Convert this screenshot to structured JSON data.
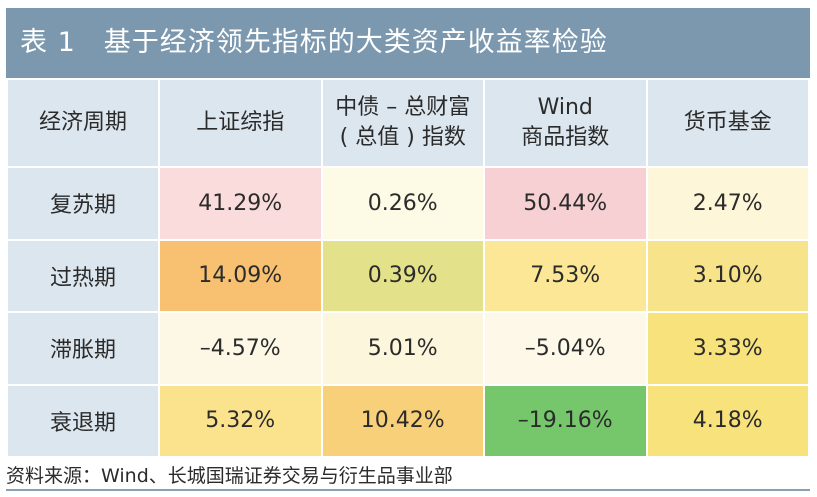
{
  "title": "表 1　基于经济领先指标的大类资产收益率检验",
  "header": {
    "col0": "经济周期",
    "col1": "上证综指",
    "col2_line1": "中债 – 总财富",
    "col2_line2": "( 总值 ) 指数",
    "col3_line1": "Wind",
    "col3_line2": "商品指数",
    "col4": "货币基金"
  },
  "rows": [
    {
      "phase": "复苏期",
      "values": [
        "41.29%",
        "0.26%",
        "50.44%",
        "2.47%"
      ],
      "colors": [
        "#fbdcdc",
        "#fdfae6",
        "#f7d0d4",
        "#fdf6d8"
      ]
    },
    {
      "phase": "过热期",
      "values": [
        "14.09%",
        "0.39%",
        "7.53%",
        "3.10%"
      ],
      "colors": [
        "#f8c171",
        "#e3e28a",
        "#fbe796",
        "#f7e48a"
      ]
    },
    {
      "phase": "滞胀期",
      "values": [
        "–4.57%",
        "5.01%",
        "–5.04%",
        "3.33%"
      ],
      "colors": [
        "#fdf7e6",
        "#fcf6dc",
        "#fdf8e8",
        "#f8e27c"
      ]
    },
    {
      "phase": "衰退期",
      "values": [
        "5.32%",
        "10.42%",
        "–19.16%",
        "4.18%"
      ],
      "colors": [
        "#fbe38e",
        "#f8d07a",
        "#76c66c",
        "#f8e27c"
      ]
    }
  ],
  "source": "资料来源：Wind、长城国瑞证券交易与衍生品事业部"
}
